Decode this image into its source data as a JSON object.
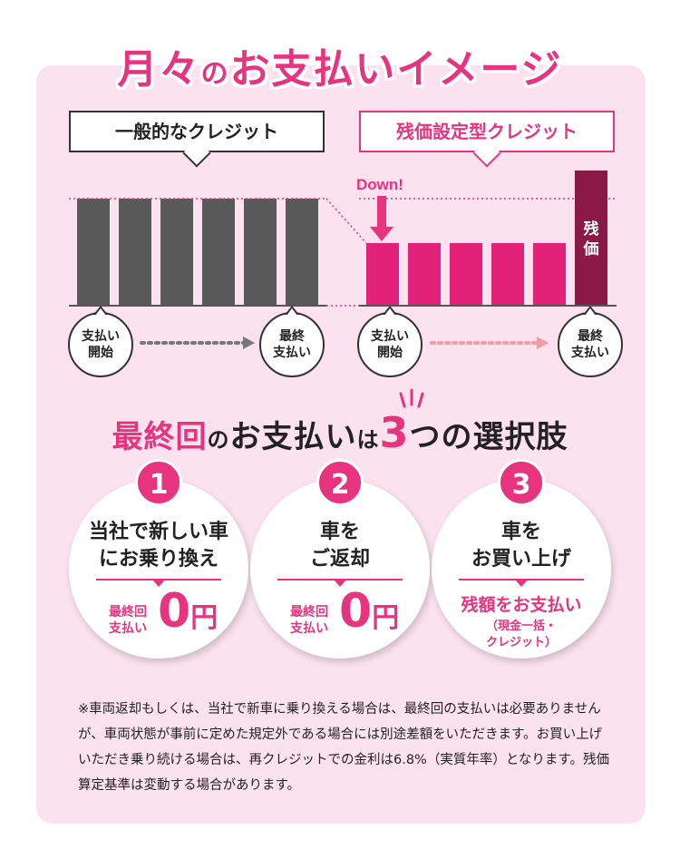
{
  "title": {
    "main": "月々",
    "mid": "の",
    "rest": "お支払いイメージ"
  },
  "comparison": {
    "general_label": "一般的なクレジット",
    "residual_label": "残価設定型クレジット",
    "down_label": "Down!",
    "residual_bar_label": "残価",
    "start_label": "支払い開始",
    "end_label": "最終支払い",
    "general_bars": 6,
    "residual_bars": 5
  },
  "subtitle": {
    "part1": "最終回",
    "part2": "の",
    "part3": "お支払い",
    "part4": "は",
    "num": "3",
    "part5": "つの選択肢"
  },
  "choices": [
    {
      "num": "1",
      "head": "当社で新しい車にお乗り換え",
      "zero_label": "最終回支払い",
      "zero_value": "0",
      "unit": "円"
    },
    {
      "num": "2",
      "head": "車をご返却",
      "zero_label": "最終回支払い",
      "zero_value": "0",
      "unit": "円"
    },
    {
      "num": "3",
      "head": "車をお買い上げ",
      "pay_text": "残額をお支払い",
      "pay_sub": "（現金一括・クレジット）"
    }
  ],
  "note": "※車両返却もしくは、当社で新車に乗り換える場合は、最終回の支払いは必要ありませんが、車両状態が事前に定めた規定外である場合には別途差額をいただきます。お買い上げいただき乗り続ける場合は、再クレジットでの金利は6.8%（実質年率）となります。残価算定基準は変動する場合があります。",
  "colors": {
    "accent": "#e8347f",
    "dark_bar": "#595959",
    "residual_bar": "#8a1a45",
    "panel_bg": "#fbe2ee"
  }
}
